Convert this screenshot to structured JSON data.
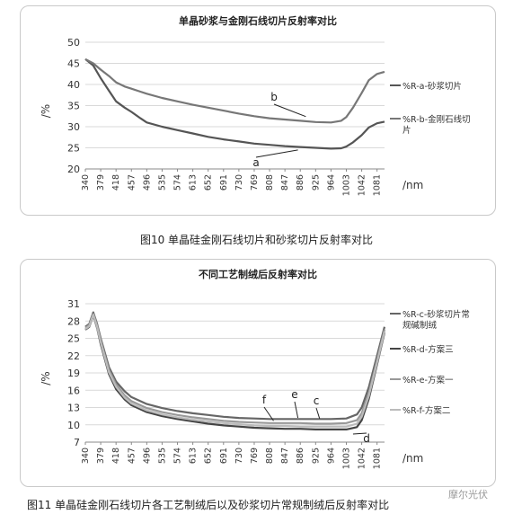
{
  "figure1": {
    "title": "单晶砂浆与金刚石线切片反射率对比",
    "caption": "图10    单晶硅金刚石线切片和砂浆切片反射率对比"
  },
  "figure2": {
    "title": "不同工艺制绒后反射率对比",
    "caption": "图11    单晶硅金刚石线切片各工艺制绒后以及砂浆切片常规制绒后反射率对比"
  },
  "watermark": "摩尔光伏",
  "chart_data": [
    {
      "type": "line",
      "title": "单晶砂浆与金刚石线切片反射率对比",
      "xlabel": "/nm",
      "ylabel": "/%",
      "ylim": [
        20,
        50
      ],
      "yticks": [
        20,
        25,
        30,
        35,
        40,
        45,
        50
      ],
      "xticks": [
        "340",
        "379",
        "418",
        "457",
        "496",
        "535",
        "574",
        "613",
        "652",
        "691",
        "730",
        "769",
        "808",
        "847",
        "886",
        "925",
        "964",
        "1003",
        "1042",
        "1081"
      ],
      "xlim": [
        340,
        1100
      ],
      "grid": "horizontal",
      "legend": "right",
      "annotations": [
        "a",
        "b"
      ],
      "series": [
        {
          "name": "%R-a-砂浆切片",
          "x": [
            340,
            360,
            379,
            400,
            418,
            440,
            457,
            480,
            496,
            535,
            574,
            613,
            652,
            691,
            730,
            769,
            808,
            847,
            886,
            925,
            964,
            990,
            1003,
            1020,
            1042,
            1060,
            1081,
            1100
          ],
          "y": [
            46,
            44.5,
            41.5,
            38.5,
            36,
            34.5,
            33.5,
            32,
            31,
            30,
            29.2,
            28.4,
            27.6,
            27,
            26.5,
            26,
            25.7,
            25.4,
            25.2,
            25,
            24.8,
            24.9,
            25.3,
            26.3,
            28,
            29.8,
            30.8,
            31.2
          ],
          "color": "#555555"
        },
        {
          "name": "%R-b-金刚石线切片",
          "x": [
            340,
            360,
            379,
            400,
            418,
            440,
            457,
            480,
            496,
            535,
            574,
            613,
            652,
            691,
            730,
            769,
            808,
            847,
            886,
            925,
            964,
            990,
            1003,
            1020,
            1042,
            1060,
            1081,
            1100
          ],
          "y": [
            46,
            45,
            43.5,
            42,
            40.5,
            39.5,
            39,
            38.3,
            37.8,
            36.8,
            36,
            35.2,
            34.5,
            33.8,
            33.1,
            32.5,
            32,
            31.7,
            31.4,
            31.1,
            31,
            31.4,
            32.3,
            34.5,
            38,
            41,
            42.5,
            43
          ],
          "color": "#777777"
        }
      ]
    },
    {
      "type": "line",
      "title": "不同工艺制绒后反射率对比",
      "xlabel": "/nm",
      "ylabel": "/%",
      "ylim": [
        7,
        31
      ],
      "yticks": [
        7,
        10,
        13,
        16,
        19,
        22,
        25,
        28,
        31
      ],
      "xticks": [
        "340",
        "379",
        "418",
        "457",
        "496",
        "535",
        "574",
        "613",
        "652",
        "691",
        "730",
        "769",
        "808",
        "847",
        "886",
        "925",
        "964",
        "1003",
        "1042",
        "1081"
      ],
      "xlim": [
        340,
        1100
      ],
      "grid": "horizontal",
      "legend": "right",
      "annotations": [
        "f",
        "e",
        "c",
        "d"
      ],
      "series": [
        {
          "name": "%R-c-砂浆切片常规碱制绒",
          "x": [
            340,
            350,
            360,
            370,
            379,
            400,
            418,
            440,
            457,
            496,
            535,
            574,
            613,
            652,
            691,
            730,
            769,
            808,
            847,
            886,
            925,
            964,
            1003,
            1030,
            1042,
            1060,
            1081,
            1100
          ],
          "y": [
            27,
            27.5,
            29.5,
            27.5,
            25,
            20,
            17.5,
            15.8,
            14.8,
            13.6,
            12.9,
            12.4,
            12,
            11.7,
            11.4,
            11.2,
            11.1,
            11,
            11,
            11,
            11,
            11,
            11.1,
            11.8,
            13,
            16.5,
            22,
            27
          ],
          "color": "#666666"
        },
        {
          "name": "%R-d-方案三",
          "x": [
            340,
            350,
            360,
            370,
            379,
            400,
            418,
            440,
            457,
            496,
            535,
            574,
            613,
            652,
            691,
            730,
            769,
            808,
            847,
            886,
            925,
            964,
            1003,
            1030,
            1042,
            1060,
            1081,
            1100
          ],
          "y": [
            26.5,
            27,
            29,
            26.8,
            24,
            18.8,
            16.2,
            14.4,
            13.4,
            12.2,
            11.5,
            11,
            10.6,
            10.2,
            9.9,
            9.7,
            9.5,
            9.4,
            9.3,
            9.3,
            9.2,
            9.2,
            9.2,
            9.6,
            10.8,
            14.5,
            20.5,
            26
          ],
          "color": "#444444"
        },
        {
          "name": "%R-e-方案一",
          "x": [
            340,
            350,
            360,
            370,
            379,
            400,
            418,
            440,
            457,
            496,
            535,
            574,
            613,
            652,
            691,
            730,
            769,
            808,
            847,
            886,
            925,
            964,
            1003,
            1030,
            1042,
            1060,
            1081,
            1100
          ],
          "y": [
            26.8,
            27.3,
            29.2,
            27.2,
            24.6,
            19.5,
            17,
            15.1,
            14.1,
            12.9,
            12.2,
            11.7,
            11.3,
            11,
            10.7,
            10.5,
            10.4,
            10.3,
            10.3,
            10.3,
            10.2,
            10.2,
            10.3,
            10.8,
            12,
            15.5,
            21.2,
            26.5
          ],
          "color": "#999999"
        },
        {
          "name": "%R-f-方案二",
          "x": [
            340,
            350,
            360,
            370,
            379,
            400,
            418,
            440,
            457,
            496,
            535,
            574,
            613,
            652,
            691,
            730,
            769,
            808,
            847,
            886,
            925,
            964,
            1003,
            1030,
            1042,
            1060,
            1081,
            1100
          ],
          "y": [
            26.6,
            27.1,
            29.1,
            27,
            24.3,
            19.1,
            16.6,
            14.7,
            13.7,
            12.5,
            11.8,
            11.3,
            10.9,
            10.6,
            10.3,
            10.1,
            9.9,
            9.8,
            9.8,
            9.7,
            9.7,
            9.7,
            9.7,
            10.2,
            11.4,
            15,
            20.8,
            26.2
          ],
          "color": "#bbbbbb"
        }
      ]
    }
  ]
}
